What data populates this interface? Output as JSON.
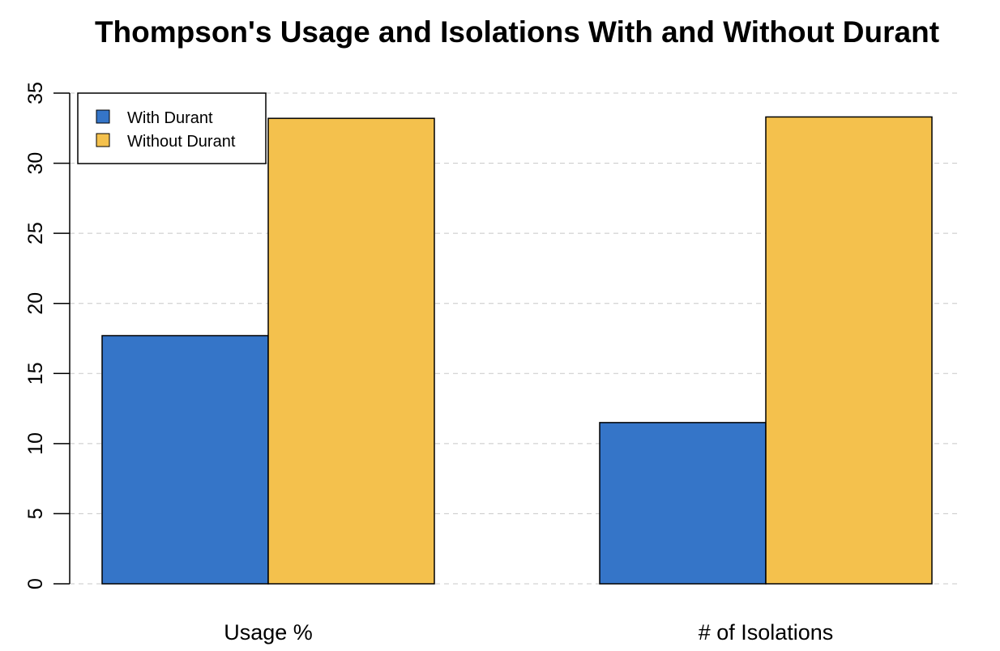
{
  "chart_data": {
    "type": "bar",
    "title": "Thompson's Usage and Isolations With and Without Durant",
    "xlabel": "",
    "ylabel": "",
    "categories": [
      "Usage %",
      "# of Isolations"
    ],
    "series": [
      {
        "name": "With Durant",
        "values": [
          17.7,
          11.5
        ],
        "color": "#3575C8"
      },
      {
        "name": "Without Durant",
        "values": [
          33.2,
          33.3
        ],
        "color": "#F4C14D"
      }
    ],
    "ylim": [
      0,
      35
    ],
    "yticks": [
      0,
      5,
      10,
      15,
      20,
      25,
      30,
      35
    ],
    "grid": "horizontal dashed",
    "legend_position": "top-left"
  }
}
